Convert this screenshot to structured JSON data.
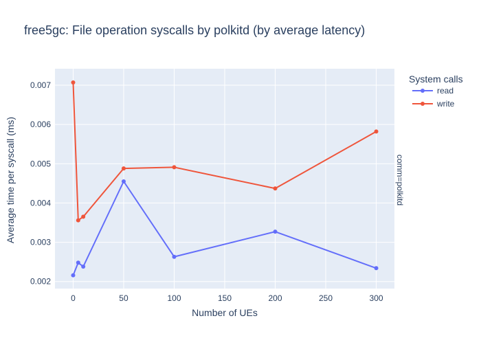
{
  "chart_data": {
    "type": "line",
    "title": "free5gc: File operation syscalls by polkitd (by average latency)",
    "xlabel": "Number of UEs",
    "ylabel": "Average time per syscall (ms)",
    "facet_label": "comm=polkitd",
    "legend_title": "System calls",
    "legend_position": "top-right",
    "grid": true,
    "xlim": [
      -18,
      318
    ],
    "ylim": [
      0.00182,
      0.00742
    ],
    "x_ticks": [
      0,
      50,
      100,
      150,
      200,
      250,
      300
    ],
    "y_ticks": [
      0.002,
      0.003,
      0.004,
      0.005,
      0.006,
      0.007
    ],
    "x_tick_labels": [
      "0",
      "50",
      "100",
      "150",
      "200",
      "250",
      "300"
    ],
    "y_tick_labels": [
      "0.002",
      "0.003",
      "0.004",
      "0.005",
      "0.006",
      "0.007"
    ],
    "series": [
      {
        "name": "read",
        "color": "#636efa",
        "x": [
          0,
          5,
          10,
          50,
          100,
          200,
          300
        ],
        "y": [
          0.00216,
          0.00248,
          0.00238,
          0.00455,
          0.00263,
          0.00327,
          0.00234
        ]
      },
      {
        "name": "write",
        "color": "#ef553b",
        "x": [
          0,
          5,
          10,
          50,
          100,
          200,
          300
        ],
        "y": [
          0.00707,
          0.00356,
          0.00365,
          0.00488,
          0.00491,
          0.00437,
          0.00582
        ]
      }
    ],
    "colors": {
      "plot_background": "#e5ecf6",
      "grid": "#ffffff",
      "text": "#2a3f5f"
    }
  }
}
